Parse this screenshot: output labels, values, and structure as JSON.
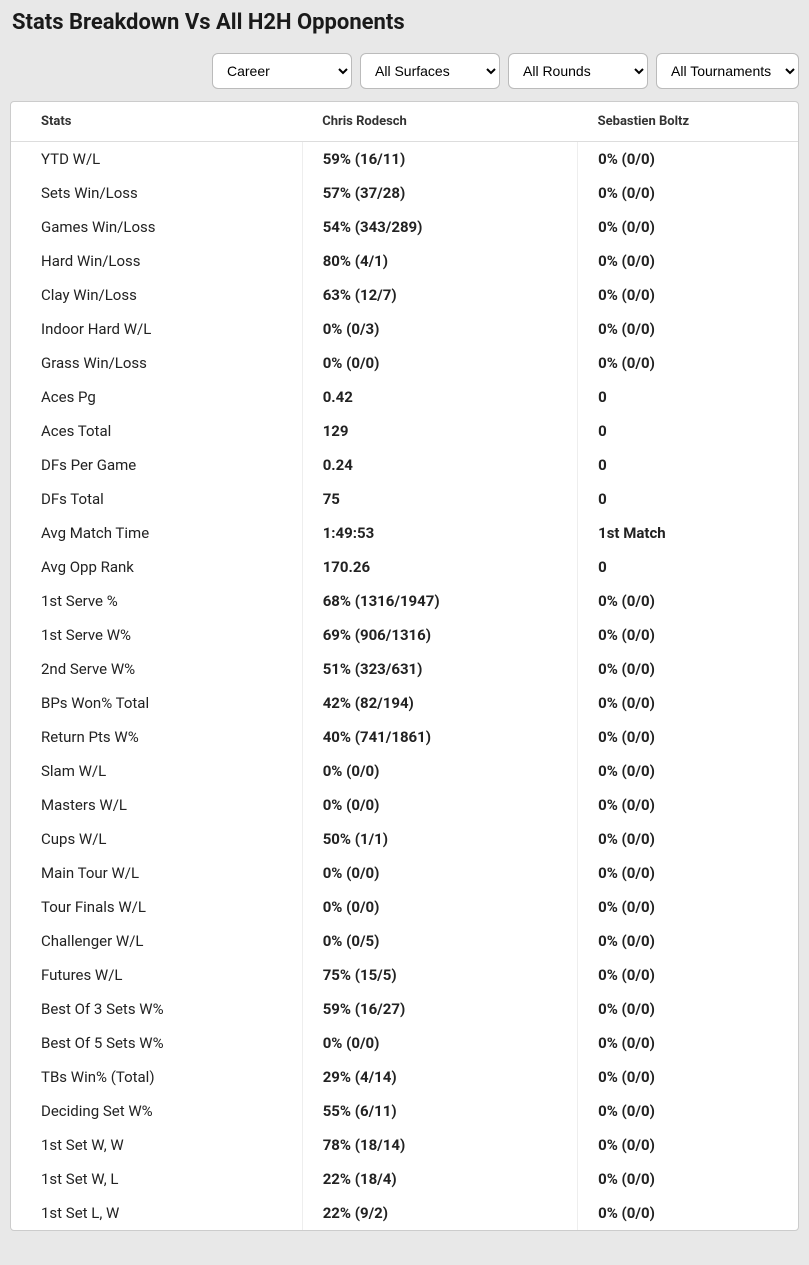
{
  "title": "Stats Breakdown Vs All H2H Opponents",
  "filters": {
    "period": "Career",
    "surface": "All Surfaces",
    "round": "All Rounds",
    "tournament": "All Tournaments"
  },
  "table": {
    "headers": {
      "stats": "Stats",
      "player1": "Chris Rodesch",
      "player2": "Sebastien Boltz"
    },
    "rows": [
      {
        "label": "YTD W/L",
        "p1": "59% (16/11)",
        "p2": "0% (0/0)"
      },
      {
        "label": "Sets Win/Loss",
        "p1": "57% (37/28)",
        "p2": "0% (0/0)"
      },
      {
        "label": "Games Win/Loss",
        "p1": "54% (343/289)",
        "p2": "0% (0/0)"
      },
      {
        "label": "Hard Win/Loss",
        "p1": "80% (4/1)",
        "p2": "0% (0/0)"
      },
      {
        "label": "Clay Win/Loss",
        "p1": "63% (12/7)",
        "p2": "0% (0/0)"
      },
      {
        "label": "Indoor Hard W/L",
        "p1": "0% (0/3)",
        "p2": "0% (0/0)"
      },
      {
        "label": "Grass Win/Loss",
        "p1": "0% (0/0)",
        "p2": "0% (0/0)"
      },
      {
        "label": "Aces Pg",
        "p1": "0.42",
        "p2": "0"
      },
      {
        "label": "Aces Total",
        "p1": "129",
        "p2": "0"
      },
      {
        "label": "DFs Per Game",
        "p1": "0.24",
        "p2": "0"
      },
      {
        "label": "DFs Total",
        "p1": "75",
        "p2": "0"
      },
      {
        "label": "Avg Match Time",
        "p1": "1:49:53",
        "p2": "1st Match"
      },
      {
        "label": "Avg Opp Rank",
        "p1": "170.26",
        "p2": "0"
      },
      {
        "label": "1st Serve %",
        "p1": "68% (1316/1947)",
        "p2": "0% (0/0)"
      },
      {
        "label": "1st Serve W%",
        "p1": "69% (906/1316)",
        "p2": "0% (0/0)"
      },
      {
        "label": "2nd Serve W%",
        "p1": "51% (323/631)",
        "p2": "0% (0/0)"
      },
      {
        "label": "BPs Won% Total",
        "p1": "42% (82/194)",
        "p2": "0% (0/0)"
      },
      {
        "label": "Return Pts W%",
        "p1": "40% (741/1861)",
        "p2": "0% (0/0)"
      },
      {
        "label": "Slam W/L",
        "p1": "0% (0/0)",
        "p2": "0% (0/0)"
      },
      {
        "label": "Masters W/L",
        "p1": "0% (0/0)",
        "p2": "0% (0/0)"
      },
      {
        "label": "Cups W/L",
        "p1": "50% (1/1)",
        "p2": "0% (0/0)"
      },
      {
        "label": "Main Tour W/L",
        "p1": "0% (0/0)",
        "p2": "0% (0/0)"
      },
      {
        "label": "Tour Finals W/L",
        "p1": "0% (0/0)",
        "p2": "0% (0/0)"
      },
      {
        "label": "Challenger W/L",
        "p1": "0% (0/5)",
        "p2": "0% (0/0)"
      },
      {
        "label": "Futures W/L",
        "p1": "75% (15/5)",
        "p2": "0% (0/0)"
      },
      {
        "label": "Best Of 3 Sets W%",
        "p1": "59% (16/27)",
        "p2": "0% (0/0)"
      },
      {
        "label": "Best Of 5 Sets W%",
        "p1": "0% (0/0)",
        "p2": "0% (0/0)"
      },
      {
        "label": "TBs Win% (Total)",
        "p1": "29% (4/14)",
        "p2": "0% (0/0)"
      },
      {
        "label": "Deciding Set W%",
        "p1": "55% (6/11)",
        "p2": "0% (0/0)"
      },
      {
        "label": "1st Set W, W",
        "p1": "78% (18/14)",
        "p2": "0% (0/0)"
      },
      {
        "label": "1st Set W, L",
        "p1": "22% (18/4)",
        "p2": "0% (0/0)"
      },
      {
        "label": "1st Set L, W",
        "p1": "22% (9/2)",
        "p2": "0% (0/0)"
      }
    ]
  }
}
